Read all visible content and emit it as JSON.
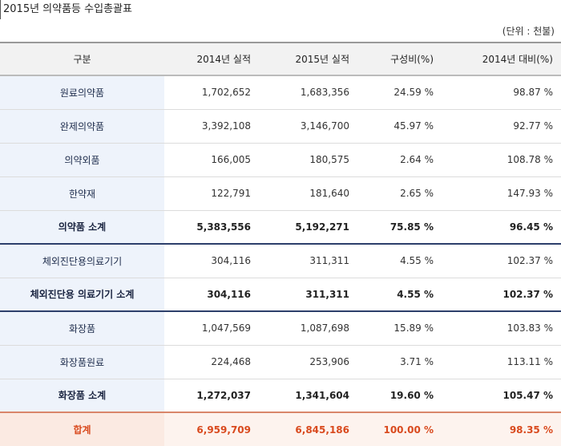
{
  "title": "2015년 의약품등 수입총괄표",
  "unit": "(단위 : 천불)",
  "headers": [
    "구분",
    "2014년 실적",
    "2015년 실적",
    "구성비(%)",
    "2014년 대비(%)"
  ],
  "rows": [
    {
      "name": "원료의약품",
      "y2014": "1,702,652",
      "y2015": "1,683,356",
      "ratio": "24.59 %",
      "yoy": "98.87 %"
    },
    {
      "name": "완제의약품",
      "y2014": "3,392,108",
      "y2015": "3,146,700",
      "ratio": "45.97 %",
      "yoy": "92.77 %"
    },
    {
      "name": "의약외품",
      "y2014": "166,005",
      "y2015": "180,575",
      "ratio": "2.64 %",
      "yoy": "108.78 %"
    },
    {
      "name": "한약재",
      "y2014": "122,791",
      "y2015": "181,640",
      "ratio": "2.65 %",
      "yoy": "147.93 %"
    },
    {
      "name": "의약품 소계",
      "y2014": "5,383,556",
      "y2015": "5,192,271",
      "ratio": "75.85 %",
      "yoy": "96.45 %"
    },
    {
      "name": "체외진단용의료기기",
      "y2014": "304,116",
      "y2015": "311,311",
      "ratio": "4.55 %",
      "yoy": "102.37 %"
    },
    {
      "name": "체외진단용 의료기기 소계",
      "y2014": "304,116",
      "y2015": "311,311",
      "ratio": "4.55 %",
      "yoy": "102.37 %"
    },
    {
      "name": "화장품",
      "y2014": "1,047,569",
      "y2015": "1,087,698",
      "ratio": "15.89 %",
      "yoy": "103.83 %"
    },
    {
      "name": "화장품원료",
      "y2014": "224,468",
      "y2015": "253,906",
      "ratio": "3.71 %",
      "yoy": "113.11 %"
    },
    {
      "name": "화장품 소계",
      "y2014": "1,272,037",
      "y2015": "1,341,604",
      "ratio": "19.60 %",
      "yoy": "105.47 %"
    },
    {
      "name": "합계",
      "y2014": "6,959,709",
      "y2015": "6,845,186",
      "ratio": "100.00 %",
      "yoy": "98.35 %"
    }
  ]
}
